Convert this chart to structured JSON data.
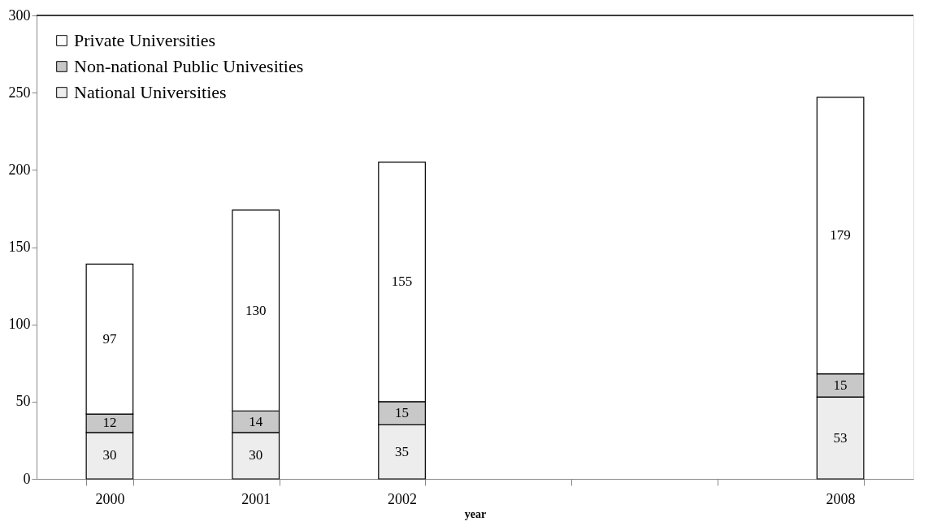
{
  "chart_data": {
    "type": "bar",
    "stacked": true,
    "xlabel": "year",
    "categories": [
      "2000",
      "2001",
      "2002",
      null,
      null,
      "2008"
    ],
    "series": [
      {
        "name": "National Universities",
        "color": "#ededed",
        "values": [
          30,
          30,
          35,
          null,
          null,
          53
        ]
      },
      {
        "name": "Non-national Public Univesities",
        "color": "#c8c8c8",
        "values": [
          12,
          14,
          15,
          null,
          null,
          15
        ]
      },
      {
        "name": "Private Universities",
        "color": "#ffffff",
        "values": [
          97,
          130,
          155,
          null,
          null,
          179
        ]
      }
    ],
    "ylim": [
      0,
      300
    ],
    "yticks": [
      0,
      50,
      100,
      150,
      200,
      250,
      300
    ],
    "grid": false,
    "legend": "top left",
    "data_labels": true
  }
}
